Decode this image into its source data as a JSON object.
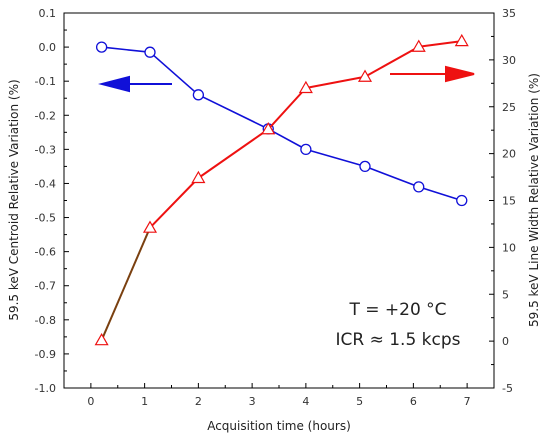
{
  "chart_data": {
    "type": "line",
    "x": [
      0.2,
      1.1,
      2.0,
      3.3,
      4.0,
      5.1,
      6.1,
      6.9
    ],
    "series": [
      {
        "axis": "left",
        "values": [
          0.0,
          -0.015,
          -0.14,
          -0.24,
          -0.3,
          -0.35,
          -0.41,
          -0.45
        ],
        "color": "#1010d8",
        "marker": "circle"
      },
      {
        "axis": "right",
        "values": [
          0.1,
          12.1,
          17.4,
          22.6,
          27.0,
          28.2,
          31.4,
          32.0
        ],
        "color": "#ee1111",
        "first_segment_color": "#7a4010",
        "marker": "triangle"
      }
    ],
    "xlabel": "Acquisition time (hours)",
    "ylabel_left": "59.5 keV Centroid Relative Variation (%)",
    "ylabel_right": "59.5 keV Line Width Relative Variation (%)",
    "xlim": [
      -0.5,
      7.5
    ],
    "ylim_left": [
      -1.0,
      0.1
    ],
    "ylim_right": [
      -5,
      35
    ],
    "xticks": [
      "0",
      "1",
      "2",
      "3",
      "4",
      "5",
      "6",
      "7"
    ],
    "yticks_left": [
      "0.1",
      "0.0",
      "-0.1",
      "-0.2",
      "-0.3",
      "-0.4",
      "-0.5",
      "-0.6",
      "-0.7",
      "-0.8",
      "-0.9",
      "-1.0"
    ],
    "yticks_right": [
      "35",
      "30",
      "25",
      "20",
      "15",
      "10",
      "5",
      "0",
      "-5"
    ],
    "annotations": [
      "T = +20 °C",
      "ICR ≈ 1.5 kcps"
    ],
    "grid": false,
    "arrows": [
      {
        "direction": "left",
        "color": "#1010d8",
        "meaning": "left axis"
      },
      {
        "direction": "right",
        "color": "#ee1111",
        "meaning": "right axis"
      }
    ]
  }
}
